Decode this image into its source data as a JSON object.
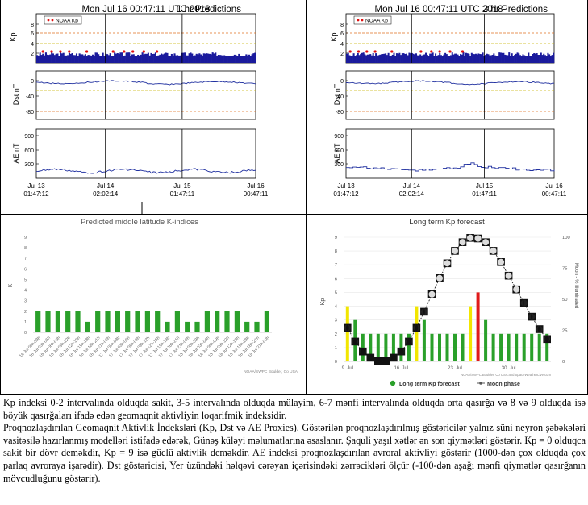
{
  "panels": {
    "p1h": {
      "title": "Mon Jul 16 00:47:11 UTC 2018",
      "subtitle": "1 hr Predictions",
      "legend": "NOAA Kp",
      "kp_label": "Kp",
      "dst_label": "Dst nT",
      "ae_label": "AE nT",
      "kp_ticks": [
        "8",
        "6",
        "4",
        "2"
      ],
      "dst_ticks": [
        "0",
        "-40",
        "-80"
      ],
      "ae_ticks": [
        "900",
        "600",
        "300"
      ],
      "x_dates": [
        "Jul 13",
        "Jul 14",
        "Jul 15",
        "Jul 16"
      ],
      "x_times": [
        "01:47:12",
        "02:02:14",
        "01:47:11",
        "00:47:11"
      ]
    },
    "p3h": {
      "title": "Mon Jul 16 00:47:11 UTC 2018",
      "subtitle": "3 hr Predictions",
      "legend": "NOAA Kp",
      "kp_label": "Kp",
      "dst_label": "Dst nT",
      "ae_label": "AE nT",
      "kp_ticks": [
        "8",
        "6",
        "4",
        "2"
      ],
      "dst_ticks": [
        "0",
        "-40",
        "-80"
      ],
      "ae_ticks": [
        "900",
        "600",
        "300"
      ],
      "x_dates": [
        "Jul 13",
        "Jul 14",
        "Jul 15",
        "Jul 16"
      ],
      "x_times": [
        "01:47:12",
        "02:02:14",
        "01:47:11",
        "00:47:11"
      ]
    }
  },
  "colors": {
    "kp_bar": "#1a1a9c",
    "kp_dot": "#e01010",
    "trace": "#2030a0",
    "warn_yellow": "#c8b400",
    "warn_orange": "#e07020",
    "green": "#2aa02a",
    "yellow": "#f2e600",
    "red": "#e01a1a"
  },
  "chart_data": [
    {
      "type": "bar",
      "title": "Predicted middle latitude K-indices",
      "ylabel": "K",
      "ylim": [
        0,
        9
      ],
      "yticks": [
        "0",
        "1",
        "2",
        "3",
        "4",
        "5",
        "6",
        "7",
        "8",
        "9"
      ],
      "categories": [
        "16 Jul 00h-03h",
        "16 Jul 03h-06h",
        "16 Jul 06h-09h",
        "16 Jul 09h-12h",
        "16 Jul 12h-15h",
        "16 Jul 15h-18h",
        "16 Jul 18h-21h",
        "16 Jul 21h-00h",
        "17 Jul 00h-03h",
        "17 Jul 03h-06h",
        "17 Jul 06h-09h",
        "17 Jul 09h-12h",
        "17 Jul 12h-15h",
        "17 Jul 15h-18h",
        "17 Jul 18h-21h",
        "17 Jul 21h-00h",
        "18 Jul 00h-03h",
        "18 Jul 03h-06h",
        "18 Jul 06h-09h",
        "18 Jul 09h-12h",
        "18 Jul 12h-15h",
        "18 Jul 15h-18h",
        "18 Jul 18h-21h",
        "18 Jul 21h-00h"
      ],
      "values": [
        2,
        2,
        2,
        2,
        2,
        1,
        2,
        2,
        2,
        2,
        2,
        2,
        2,
        1,
        2,
        1,
        1,
        2,
        2,
        2,
        2,
        1,
        1,
        2
      ],
      "credit": "NOAA/SWPC Boulder, Co USA"
    },
    {
      "type": "bar",
      "title": "Long term Kp forecast",
      "ylabel": "Kp",
      "y2label": "Moon - % Illuminated",
      "ylim": [
        0,
        9
      ],
      "y2lim": [
        0,
        100
      ],
      "yticks": [
        "0",
        "1",
        "2",
        "3",
        "4",
        "5",
        "6",
        "7",
        "8",
        "9"
      ],
      "y2ticks": [
        "0",
        "25",
        "50",
        "75",
        "100"
      ],
      "x_ticks": [
        "9. Jul",
        "16. Jul",
        "23. Jul",
        "30. Jul"
      ],
      "values": [
        4,
        3,
        2,
        2,
        2,
        2,
        2,
        2,
        2,
        4,
        3,
        2,
        2,
        2,
        2,
        2,
        4,
        5,
        3,
        2,
        2,
        2,
        2,
        2,
        2,
        2,
        2
      ],
      "moon_phase": [
        27,
        16,
        8,
        3,
        0.5,
        0.5,
        3,
        8,
        16,
        27,
        40,
        54,
        67,
        79,
        89,
        96,
        99.5,
        99,
        96,
        89,
        80,
        69,
        58,
        47,
        36,
        26,
        18
      ],
      "legend": [
        "Long term Kp forecast",
        "Moon phase"
      ],
      "credit": "NOAA/SWPC Boulder, Co USA and SpaceWeatherLive.com"
    }
  ],
  "caption": [
    "Kp indeksi 0-2 intervalında olduqda sakit, 3-5 intervalında olduqda mülayim, 6-7 mənfi intervalında olduqda orta qasırğa və 8 və 9 olduqda isə böyük qasırğaları ifadə edən geomaqnit aktivliyin loqarifmik indeksidir.",
    "Proqnozlaşdırılan Geomaqnit Aktivlik İndeksləri (Kp, Dst və AE Proxies). Göstərilən proqnozlaşdırılmış göstəricilər yalnız süni neyron şəbəkələri vasitəsilə hazırlanmış modelləri istifadə edərək, Günəş küləyi məlumatlarına əsaslanır. Şaquli yaşıl xətlər ən son qiymətləri göstərir. Kp = 0 olduqca sakit bir dövr deməkdir, Kp = 9 isə güclü aktivlik deməkdir. AE indeksi proqnozlaşdırılan avroral aktivliyi göstərir (1000-dən çox olduqda çox parlaq avroraya işarədir). Dst göstəricisi, Yer üzündəki  həlqəvi cərəyan içərisindəki zərrəcikləri ölçür (-100-dən aşağı mənfi qiymətlər qasırğanın mövcudluğunu göstərir)."
  ]
}
